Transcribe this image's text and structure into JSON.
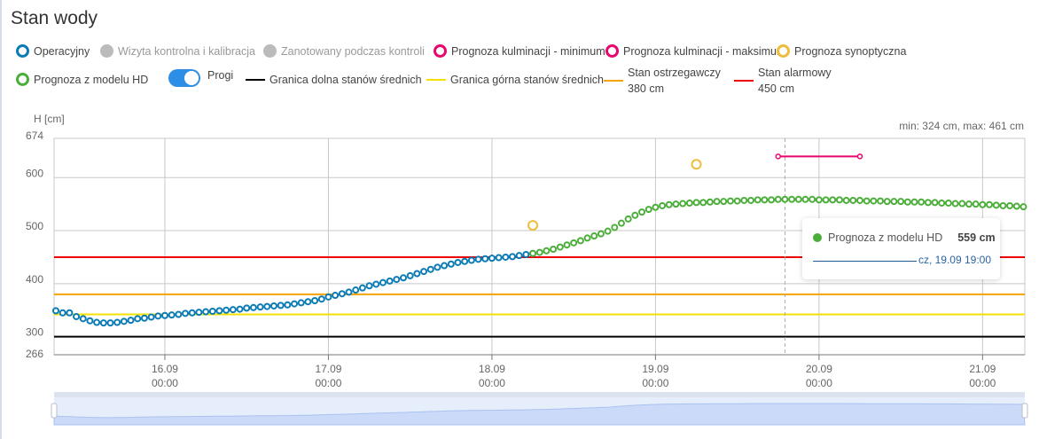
{
  "title": "Stan wody",
  "legend": {
    "operacyjny": "Operacyjny",
    "wizyta": "Wizyta kontrolna i kalibracja",
    "zanotowany": "Zanotowany podczas kontroli",
    "kulm_min": "Prognoza kulminacji - minimum",
    "kulm_max": "Prognoza kulminacji - maksimum",
    "synoptyczna": "Prognoza synoptyczna",
    "model_hd": "Prognoza z modelu HD",
    "progi": "Progi",
    "granica_dolna": "Granica dolna stanów średnich",
    "granica_gorna": "Granica górna stanów średnich",
    "ostrzegawczy": "Stan ostrzegawczy",
    "ostrzegawczy_val": "380 cm",
    "alarmowy": "Stan alarmowy",
    "alarmowy_val": "450 cm"
  },
  "colors": {
    "operacyjny": "#0a7bb5",
    "model_hd": "#4cae3a",
    "synoptyczna": "#efbd3c",
    "kulminacja": "#e8056e",
    "dolna": "#000000",
    "gorna": "#f5e200",
    "ostrzegawczy": "#f5a300",
    "alarmowy": "#ee0000"
  },
  "tooltip": {
    "series": "Prognoza z modelu HD",
    "value": "559 cm",
    "date": "cz, 19.09 19:00"
  },
  "chart_data": {
    "type": "line",
    "ylabel": "H [cm]",
    "minmax": "min: 324 cm, max: 461 cm",
    "ylim": [
      266,
      674
    ],
    "x_unit": "hours from 15.09 00:00",
    "xlim": [
      7.74,
      150.2
    ],
    "yticks": [
      "674",
      "600",
      "500",
      "400",
      "300",
      "266"
    ],
    "ytick_values": [
      674,
      600,
      500,
      400,
      300,
      266
    ],
    "xticks": [
      {
        "h": 24,
        "date": "16.09",
        "time": "00:00"
      },
      {
        "h": 48,
        "date": "17.09",
        "time": "00:00"
      },
      {
        "h": 72,
        "date": "18.09",
        "time": "00:00"
      },
      {
        "h": 96,
        "date": "19.09",
        "time": "00:00"
      },
      {
        "h": 120,
        "date": "20.09",
        "time": "00:00"
      },
      {
        "h": 144,
        "date": "21.09",
        "time": "00:00"
      }
    ],
    "thresholds": [
      {
        "name": "Granica dolna stanów średnich",
        "value": 300
      },
      {
        "name": "Granica górna stanów średnich",
        "value": 342
      },
      {
        "name": "Stan ostrzegawczy",
        "value": 380
      },
      {
        "name": "Stan alarmowy",
        "value": 450
      }
    ],
    "series": [
      {
        "name": "Operacyjny",
        "start_hour": 8,
        "step": 1,
        "values": [
          349,
          345,
          345,
          338,
          334,
          330,
          327,
          326,
          326,
          327,
          329,
          331,
          334,
          335,
          337,
          339,
          340,
          341,
          342,
          344,
          345,
          346,
          347,
          348,
          349,
          350,
          351,
          352,
          354,
          355,
          356,
          357,
          358,
          359,
          360,
          362,
          364,
          366,
          368,
          371,
          375,
          378,
          381,
          384,
          388,
          392,
          396,
          399,
          402,
          405,
          408,
          411,
          415,
          419,
          423,
          427,
          431,
          434,
          437,
          440,
          442,
          444,
          446,
          447,
          448,
          449,
          450,
          451,
          453,
          455,
          457
        ]
      },
      {
        "name": "Prognoza z modelu HD",
        "start_hour": 78,
        "step": 1,
        "values": [
          457,
          459,
          462,
          465,
          469,
          473,
          477,
          481,
          486,
          490,
          494,
          499,
          506,
          514,
          522,
          529,
          535,
          540,
          544,
          547,
          549,
          550,
          551,
          552,
          553,
          553,
          554,
          555,
          555,
          556,
          556,
          557,
          557,
          558,
          558,
          558,
          559,
          559,
          559,
          559,
          559,
          559,
          558,
          558,
          558,
          558,
          557,
          557,
          557,
          556,
          556,
          556,
          555,
          555,
          555,
          554,
          554,
          554,
          553,
          553,
          552,
          552,
          551,
          551,
          550,
          550,
          549,
          549,
          548,
          547,
          547,
          546,
          545
        ]
      },
      {
        "name": "Prognoza synoptyczna",
        "points": [
          [
            78,
            510
          ],
          [
            102,
            625
          ]
        ]
      },
      {
        "name": "Prognoza kulminacji",
        "points": [
          [
            114,
            640
          ],
          [
            126,
            640
          ]
        ]
      }
    ],
    "crosshair_hour": 115
  }
}
